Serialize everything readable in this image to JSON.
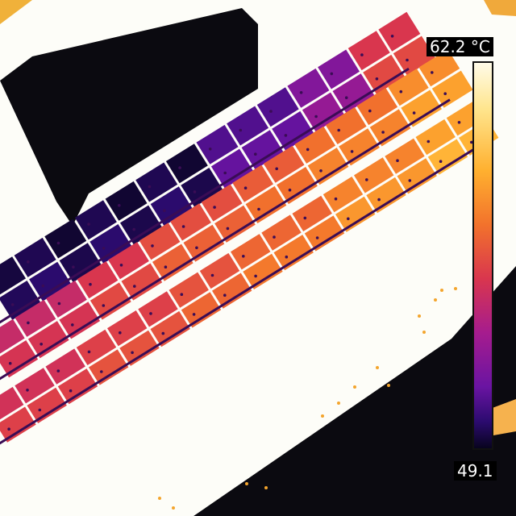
{
  "image": {
    "description_type": "thermal-camera-image",
    "subject": "solar-panel-array"
  },
  "temperature_scale": {
    "max_label": "62.2 °C",
    "min_label": "49.1",
    "max_value": 62.2,
    "min_value": 49.1,
    "unit": "°C",
    "palette": [
      "#08041e",
      "#2c0b70",
      "#6a14a2",
      "#a61c8e",
      "#d9364e",
      "#f2722c",
      "#ffb02f",
      "#ffe58d",
      "#fffbe8"
    ]
  },
  "colors": {
    "background": "#fdfdf8",
    "shadow": "#0b0a10",
    "panel_gap": "#3a0c55"
  }
}
